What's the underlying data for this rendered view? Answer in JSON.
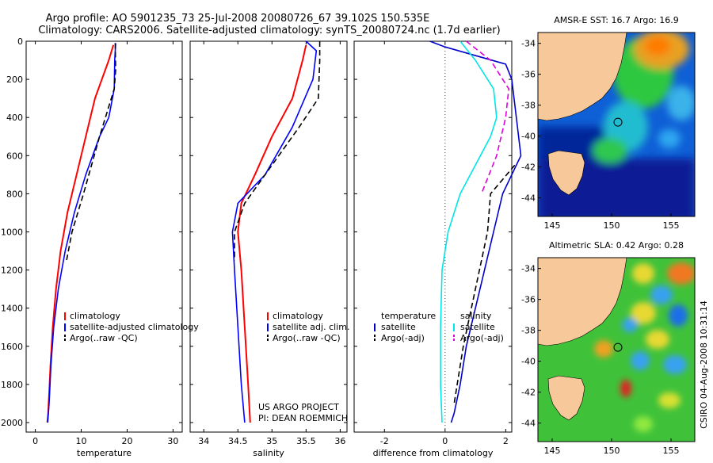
{
  "header": {
    "line1": "Argo profile: AO 5901235_73 25-Jul-2008 20080726_67 39.102S 150.535E",
    "line2": "Climatology: CARS2006. Satellite-adjusted climatology: synTS_20080724.nc (1.7d earlier)"
  },
  "credit": {
    "line1": "US ARGO PROJECT",
    "line2": "PI: DEAN ROEMMICH"
  },
  "timestamp": "CSIRO 04-Aug-2008 10:31:14",
  "colors": {
    "climatology": "#ff0000",
    "satellite": "#0000ff",
    "argo": "#000000",
    "sat_temp": "#0000cc",
    "sat_sal": "#00e5e5",
    "argo_sal": "#dd00dd"
  },
  "chart_data": [
    {
      "type": "line",
      "title": "",
      "xlabel": "temperature",
      "ylabel": "",
      "xlim": [
        -2,
        32
      ],
      "ylim": [
        2050,
        0
      ],
      "y_inverted": true,
      "xticks": [
        0,
        10,
        20,
        30
      ],
      "yticks": [
        0,
        200,
        400,
        600,
        800,
        1000,
        1200,
        1400,
        1600,
        1800,
        2000
      ],
      "legend_position": "lower-right",
      "series": [
        {
          "name": "climatology",
          "color": "#ff0000",
          "x": [
            17.0,
            16.0,
            13.0,
            11.0,
            9.0,
            7.0,
            5.5,
            4.5,
            3.8,
            3.3,
            3.0,
            2.8,
            2.6
          ],
          "y": [
            20,
            100,
            300,
            500,
            700,
            900,
            1100,
            1300,
            1500,
            1700,
            1850,
            1950,
            2000
          ]
        },
        {
          "name": "satellite-adjusted climatology",
          "color": "#0000ff",
          "x": [
            17.5,
            17.3,
            17.2,
            16.0,
            14.0,
            11.0,
            8.5,
            6.5,
            5.0,
            4.0,
            3.4,
            3.0,
            2.7
          ],
          "y": [
            10,
            100,
            250,
            400,
            500,
            700,
            900,
            1100,
            1300,
            1500,
            1700,
            1900,
            2000
          ]
        },
        {
          "name": "Argo(..raw -QC)",
          "color": "#000000",
          "dash": true,
          "x": [
            17.4,
            17.5,
            17.2,
            14.0,
            10.5,
            8.0,
            6.8
          ],
          "y": [
            10,
            150,
            250,
            500,
            800,
            1000,
            1150
          ]
        }
      ]
    },
    {
      "type": "line",
      "title": "",
      "xlabel": "salinity",
      "ylabel": "",
      "xlim": [
        33.8,
        36.1
      ],
      "ylim": [
        2050,
        0
      ],
      "y_inverted": true,
      "xticks": [
        34,
        34.5,
        35,
        35.5,
        36
      ],
      "yticks": [
        0,
        200,
        400,
        600,
        800,
        1000,
        1200,
        1400,
        1600,
        1800,
        2000
      ],
      "legend_position": "lower-right",
      "series": [
        {
          "name": "climatology",
          "color": "#ff0000",
          "x": [
            35.5,
            35.45,
            35.3,
            35.0,
            34.75,
            34.55,
            34.5,
            34.55,
            34.6,
            34.65,
            34.68
          ],
          "y": [
            20,
            100,
            300,
            500,
            700,
            850,
            1000,
            1200,
            1500,
            1800,
            2000
          ]
        },
        {
          "name": "satellite adj. clim.",
          "color": "#0000ff",
          "x": [
            35.5,
            35.65,
            35.6,
            35.3,
            34.9,
            34.5,
            34.42,
            34.45,
            34.5,
            34.55,
            34.6
          ],
          "y": [
            0,
            50,
            200,
            450,
            700,
            850,
            1000,
            1200,
            1500,
            1800,
            2000
          ]
        },
        {
          "name": "Argo(..raw -QC)",
          "color": "#000000",
          "dash": true,
          "x": [
            35.7,
            35.7,
            35.68,
            35.4,
            34.9,
            34.6,
            34.45,
            34.45
          ],
          "y": [
            0,
            100,
            300,
            450,
            700,
            850,
            1000,
            1150
          ]
        }
      ]
    },
    {
      "type": "line",
      "title": "",
      "xlabel": "difference from climatology",
      "ylabel": "",
      "xlim": [
        -3,
        2.2
      ],
      "ylim": [
        2050,
        0
      ],
      "y_inverted": true,
      "xticks": [
        -2,
        0,
        2
      ],
      "yticks": [
        0,
        200,
        400,
        600,
        800,
        1000,
        1200,
        1400,
        1600,
        1800,
        2000
      ],
      "reference_line_x": 0,
      "legend_position": "lower-right",
      "legend_columns": [
        {
          "heading": "temperature",
          "items": [
            "satellite",
            "Argo(-adj)"
          ]
        },
        {
          "heading": "salinity",
          "items": [
            "satellite",
            "Argo(-adj)"
          ]
        }
      ],
      "series": [
        {
          "name": "temperature satellite",
          "color": "#0000cc",
          "x": [
            -0.5,
            0.0,
            2.0,
            2.2,
            2.5,
            1.9,
            1.6,
            1.3,
            1.0,
            0.7,
            0.5,
            0.3,
            0.2
          ],
          "y": [
            0,
            30,
            120,
            200,
            600,
            800,
            1000,
            1200,
            1400,
            1600,
            1800,
            1950,
            2000
          ]
        },
        {
          "name": "temperature Argo(-adj)",
          "color": "#000000",
          "dash": true,
          "x": [
            2.3,
            1.5,
            1.4,
            1.0,
            0.6,
            0.4,
            0.3
          ],
          "y": [
            650,
            800,
            1000,
            1300,
            1600,
            1800,
            1900
          ]
        },
        {
          "name": "salinity satellite",
          "color": "#00e5e5",
          "x": [
            0.5,
            1.0,
            1.6,
            1.7,
            1.5,
            1.0,
            0.5,
            0.1,
            -0.1,
            -0.15,
            -0.15,
            -0.1
          ],
          "y": [
            0,
            100,
            250,
            400,
            500,
            650,
            800,
            1000,
            1200,
            1500,
            1800,
            2000
          ]
        },
        {
          "name": "salinity Argo(-adj)",
          "color": "#dd00dd",
          "dash": true,
          "x": [
            0.7,
            1.5,
            2.1,
            2.0,
            1.7,
            1.2
          ],
          "y": [
            0,
            100,
            250,
            400,
            600,
            800
          ]
        }
      ]
    },
    {
      "type": "heatmap",
      "title": "AMSR-E SST: 16.7 Argo: 16.9",
      "xlim": [
        143.8,
        157
      ],
      "ylim": [
        -45.2,
        -33.3
      ],
      "xticks": [
        145,
        150,
        155
      ],
      "yticks": [
        -34,
        -36,
        -38,
        -40,
        -42,
        -44
      ],
      "profile_lon": 150.535,
      "profile_lat": -39.102
    },
    {
      "type": "heatmap",
      "title": "Altimetric SLA: 0.42 Argo: 0.28",
      "xlim": [
        143.8,
        157
      ],
      "ylim": [
        -45.2,
        -33.3
      ],
      "xticks": [
        145,
        150,
        155
      ],
      "yticks": [
        -34,
        -36,
        -38,
        -40,
        -42,
        -44
      ],
      "profile_lon": 150.535,
      "profile_lat": -39.102
    }
  ]
}
